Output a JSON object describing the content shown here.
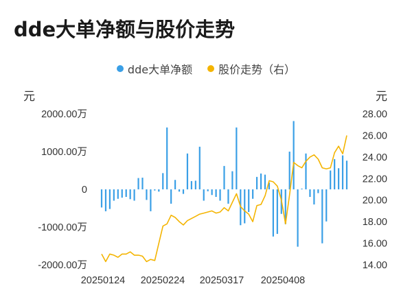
{
  "title": "dde大单净额与股价走势",
  "legend": {
    "bar_label": "dde大单净额",
    "line_label": "股价走势（右）"
  },
  "units": {
    "left": "元",
    "right": "元"
  },
  "colors": {
    "bar": "#3a9fe6",
    "line": "#f4b400"
  },
  "chart_data": {
    "type": "bar",
    "x_tick_labels": [
      "20250124",
      "20250224",
      "20250317",
      "20250408"
    ],
    "left_axis": {
      "ylim": [
        -2000,
        2000
      ],
      "ticks": [
        "2000.00万",
        "1000.00万",
        "0",
        "-1000.00万",
        "-2000.00万"
      ],
      "unit": "元"
    },
    "right_axis": {
      "ylim": [
        14,
        28
      ],
      "ticks": [
        "28.00",
        "26.00",
        "24.00",
        "22.00",
        "20.00",
        "18.00",
        "16.00",
        "14.00"
      ],
      "unit": "元"
    },
    "series": [
      {
        "name": "dde大单净额",
        "type": "bar",
        "axis": "left",
        "values": [
          -480,
          -580,
          -520,
          -300,
          -250,
          -220,
          -200,
          -260,
          -300,
          300,
          310,
          -280,
          -580,
          -30,
          -60,
          430,
          1640,
          -380,
          250,
          -60,
          -120,
          950,
          220,
          230,
          1130,
          -300,
          -50,
          -150,
          -200,
          -300,
          620,
          -380,
          480,
          1640,
          -950,
          -900,
          -600,
          -250,
          330,
          420,
          390,
          180,
          -1250,
          -1180,
          -650,
          -920,
          1000,
          1810,
          -1520,
          20,
          950,
          -200,
          -400,
          -100,
          -1430,
          -850,
          500,
          800,
          560,
          900,
          760
        ]
      },
      {
        "name": "股价走势（右）",
        "type": "line",
        "axis": "right",
        "values": [
          15.0,
          14.3,
          15.0,
          14.9,
          14.7,
          15.0,
          15.0,
          15.2,
          14.9,
          14.9,
          14.8,
          14.3,
          14.5,
          14.4,
          16.0,
          17.6,
          17.8,
          18.6,
          18.4,
          18.0,
          17.7,
          18.1,
          18.3,
          18.5,
          18.7,
          18.8,
          18.9,
          19.0,
          18.8,
          18.9,
          19.3,
          19.0,
          19.8,
          20.6,
          19.4,
          19.0,
          18.7,
          18.0,
          19.5,
          19.6,
          20.4,
          21.8,
          21.7,
          21.3,
          20.0,
          17.8,
          20.5,
          23.5,
          23.2,
          23.0,
          23.6,
          24.0,
          24.2,
          23.8,
          23.0,
          22.9,
          23.0,
          24.4,
          25.0,
          24.3,
          26.0
        ]
      }
    ]
  }
}
